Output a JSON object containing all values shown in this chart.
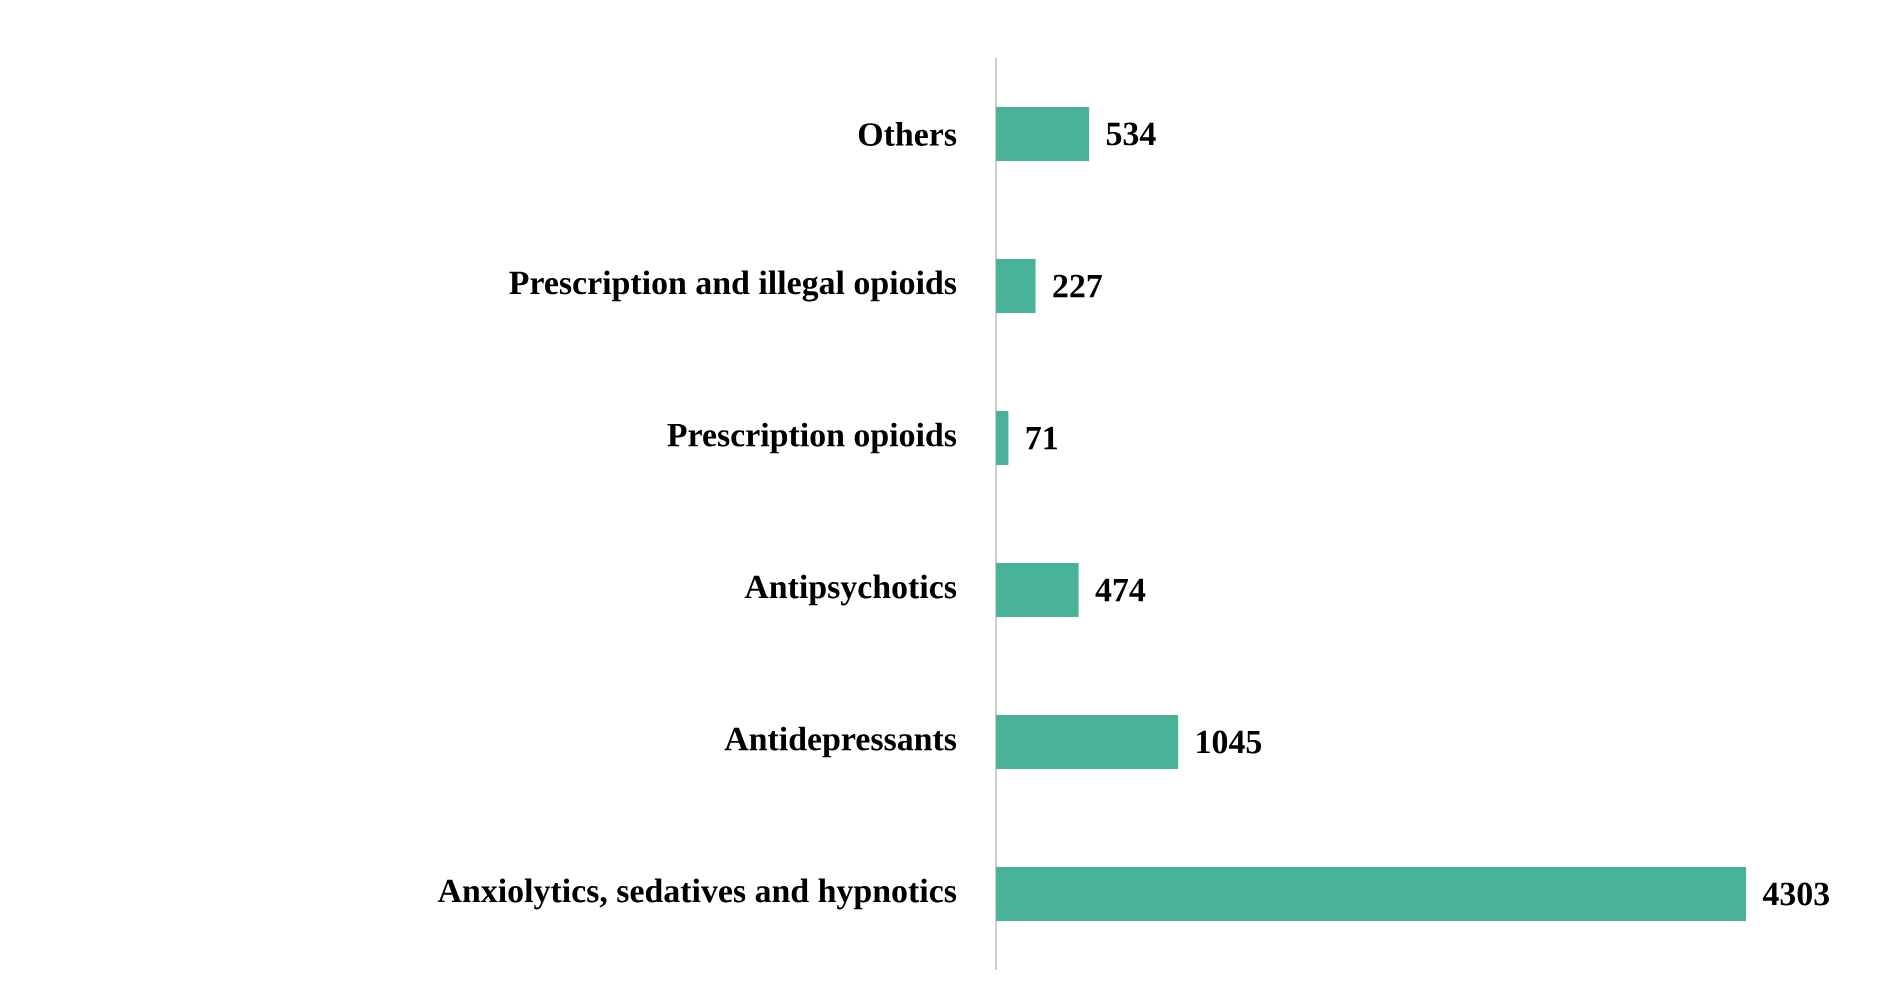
{
  "chart_data": {
    "type": "bar",
    "orientation": "horizontal",
    "categories": [
      "Others",
      "Prescription and illegal opioids",
      "Prescription opioids",
      "Antipsychotics",
      "Antidepressants",
      "Anxiolytics, sedatives and hypnotics"
    ],
    "values": [
      534,
      227,
      71,
      474,
      1045,
      4303
    ],
    "color": "#48b398",
    "data_labels": true
  }
}
